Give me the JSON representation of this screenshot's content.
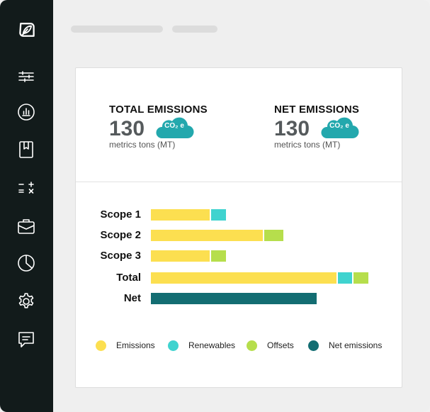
{
  "colors": {
    "sidebar_bg": "#121b1b",
    "emissions": "#fcdf50",
    "renewables": "#3fd3cf",
    "offsets": "#b6de4c",
    "net_emissions": "#136d72",
    "cloud": "#23a8ad"
  },
  "sidebar": {
    "logo": "leaf-logo-icon",
    "items": [
      {
        "icon": "sliders-icon"
      },
      {
        "icon": "bar-chart-icon"
      },
      {
        "icon": "book-icon"
      },
      {
        "icon": "calculator-icon"
      },
      {
        "icon": "briefcase-icon"
      },
      {
        "icon": "pie-chart-icon"
      },
      {
        "icon": "gear-icon"
      },
      {
        "icon": "chat-icon"
      }
    ]
  },
  "summary": {
    "total": {
      "title": "TOTAL EMISSIONS",
      "value": "130",
      "badge": "CO₂ e",
      "unit": "metrics tons (MT)"
    },
    "net": {
      "title": "NET EMISSIONS",
      "value": "130",
      "badge": "CO₂ e",
      "unit": "metrics tons (MT)"
    }
  },
  "chart_data": {
    "type": "bar",
    "orientation": "horizontal",
    "stacked": true,
    "categories": [
      "Scope 1",
      "Scope 2",
      "Scope 3",
      "Total",
      "Net"
    ],
    "series": [
      {
        "name": "Emissions",
        "values": [
          83,
          158,
          83,
          262,
          0
        ]
      },
      {
        "name": "Renewables",
        "values": [
          21,
          0,
          0,
          20,
          0
        ]
      },
      {
        "name": "Offsets",
        "values": [
          0,
          27,
          21,
          21,
          0
        ]
      },
      {
        "name": "Net emissions",
        "values": [
          0,
          0,
          0,
          0,
          234
        ]
      }
    ],
    "legend_position": "bottom",
    "grid": false
  }
}
